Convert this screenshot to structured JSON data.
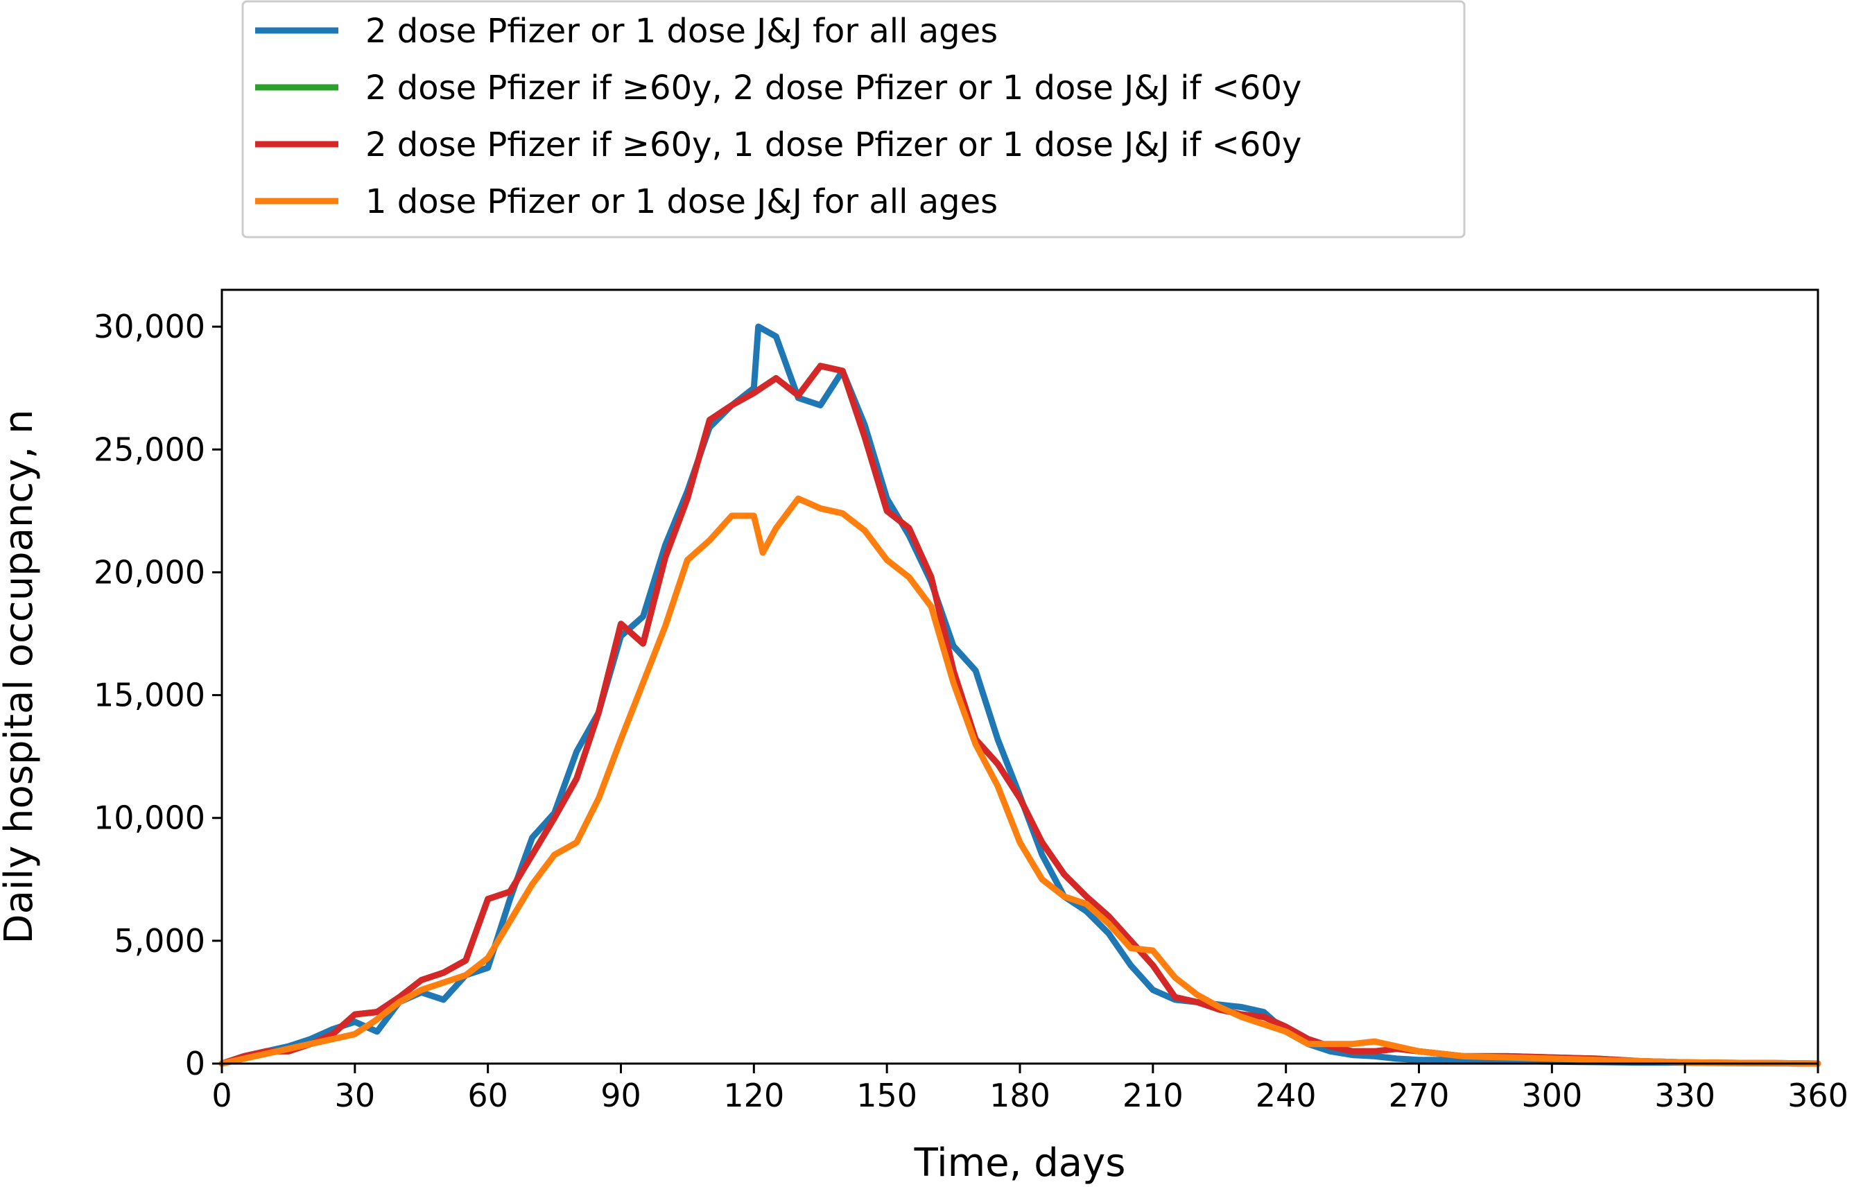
{
  "chart_data": {
    "type": "line",
    "xlabel": "Time, days",
    "ylabel": "Daily hospital occupancy, n",
    "xlim": [
      0,
      360
    ],
    "ylim": [
      0,
      31500
    ],
    "xticks": [
      "0",
      "30",
      "60",
      "90",
      "120",
      "150",
      "180",
      "210",
      "240",
      "270",
      "300",
      "330",
      "360"
    ],
    "yticks": [
      "0",
      "5,000",
      "10,000",
      "15,000",
      "20,000",
      "25,000",
      "30,000"
    ],
    "grid": false,
    "legend_position": "top-left, above plot",
    "series": [
      {
        "name": "2 dose Pfizer or 1 dose J&J for all ages",
        "color": "#1f77b4",
        "x": [
          0,
          5,
          10,
          15,
          20,
          25,
          30,
          35,
          40,
          45,
          50,
          55,
          60,
          65,
          70,
          75,
          80,
          85,
          90,
          95,
          100,
          105,
          110,
          115,
          120,
          121,
          125,
          130,
          135,
          140,
          145,
          150,
          155,
          160,
          165,
          170,
          175,
          180,
          185,
          190,
          195,
          200,
          205,
          210,
          215,
          220,
          225,
          230,
          235,
          240,
          245,
          250,
          255,
          260,
          265,
          270,
          280,
          290,
          300,
          310,
          320,
          330,
          340,
          350,
          360
        ],
        "y": [
          0,
          300,
          500,
          700,
          1000,
          1400,
          1700,
          1300,
          2500,
          2900,
          2600,
          3600,
          3900,
          6700,
          9200,
          10200,
          12700,
          14300,
          17400,
          18200,
          21100,
          23300,
          25900,
          26800,
          27500,
          30000,
          29600,
          27100,
          26800,
          28200,
          26000,
          23000,
          21500,
          19600,
          17000,
          16000,
          13200,
          10900,
          8500,
          6800,
          6200,
          5300,
          4000,
          3000,
          2600,
          2500,
          2400,
          2300,
          2100,
          1300,
          800,
          500,
          350,
          300,
          200,
          150,
          150,
          100,
          80,
          60,
          40,
          40,
          20,
          10,
          0
        ]
      },
      {
        "name": "2 dose Pfizer if ≥60y, 2 dose Pfizer or 1 dose J&J if <60y",
        "color": "#2ca02c",
        "x": [
          0,
          5,
          10,
          15,
          20,
          25,
          30,
          35,
          40,
          45,
          50,
          55,
          60,
          65,
          70,
          75,
          80,
          85,
          90,
          95,
          100,
          105,
          110,
          115,
          120,
          125,
          130,
          135,
          140,
          145,
          150,
          155,
          160,
          165,
          170,
          175,
          180,
          185,
          190,
          195,
          200,
          205,
          210,
          215,
          220,
          225,
          230,
          235,
          240,
          245,
          250,
          255,
          260,
          265,
          270,
          280,
          290,
          300,
          310,
          320,
          330,
          340,
          350,
          360
        ],
        "y": [
          0,
          300,
          500,
          500,
          800,
          1200,
          2000,
          2100,
          2700,
          3400,
          3700,
          4200,
          6700,
          7000,
          8500,
          10000,
          11600,
          14300,
          17900,
          17100,
          20600,
          23000,
          26200,
          26800,
          27300,
          27900,
          27200,
          28400,
          28200,
          25500,
          22500,
          21800,
          19800,
          16000,
          13200,
          12200,
          10800,
          9000,
          7700,
          6800,
          6000,
          5000,
          4000,
          2700,
          2500,
          2200,
          2000,
          1900,
          1500,
          1000,
          700,
          500,
          500,
          600,
          500,
          300,
          300,
          250,
          200,
          100,
          50,
          30,
          20,
          0
        ]
      },
      {
        "name": "2 dose Pfizer if ≥60y, 1 dose Pfizer or 1 dose J&J if <60y",
        "color": "#d62728",
        "x": [
          0,
          5,
          10,
          15,
          20,
          25,
          30,
          35,
          40,
          45,
          50,
          55,
          60,
          65,
          70,
          75,
          80,
          85,
          90,
          95,
          100,
          105,
          110,
          115,
          120,
          125,
          130,
          135,
          140,
          145,
          150,
          155,
          160,
          165,
          170,
          175,
          180,
          185,
          190,
          195,
          200,
          205,
          210,
          215,
          220,
          225,
          230,
          235,
          240,
          245,
          250,
          255,
          260,
          265,
          270,
          280,
          290,
          300,
          310,
          320,
          330,
          340,
          350,
          360
        ],
        "y": [
          0,
          300,
          500,
          500,
          800,
          1200,
          2000,
          2100,
          2700,
          3400,
          3700,
          4200,
          6700,
          7000,
          8500,
          10000,
          11600,
          14300,
          17900,
          17100,
          20600,
          23000,
          26200,
          26800,
          27300,
          27900,
          27200,
          28400,
          28200,
          25500,
          22500,
          21800,
          19800,
          16000,
          13200,
          12200,
          10800,
          9000,
          7700,
          6800,
          6000,
          5000,
          4000,
          2700,
          2500,
          2200,
          2000,
          1900,
          1500,
          1000,
          700,
          500,
          500,
          600,
          500,
          300,
          300,
          250,
          200,
          100,
          50,
          30,
          20,
          0
        ]
      },
      {
        "name": "1 dose Pfizer or 1 dose J&J for all ages",
        "color": "#ff7f0e",
        "x": [
          0,
          5,
          10,
          15,
          20,
          25,
          30,
          35,
          40,
          45,
          50,
          55,
          60,
          65,
          70,
          75,
          80,
          85,
          90,
          95,
          100,
          105,
          110,
          115,
          120,
          122,
          125,
          130,
          135,
          140,
          145,
          150,
          155,
          160,
          165,
          170,
          175,
          180,
          185,
          190,
          195,
          200,
          205,
          210,
          215,
          220,
          225,
          230,
          235,
          240,
          245,
          250,
          255,
          260,
          265,
          270,
          280,
          290,
          300,
          310,
          320,
          330,
          340,
          350,
          360
        ],
        "y": [
          0,
          200,
          400,
          600,
          800,
          1000,
          1200,
          1800,
          2500,
          3000,
          3300,
          3600,
          4300,
          5800,
          7300,
          8500,
          9000,
          10800,
          13200,
          15500,
          17800,
          20500,
          21300,
          22300,
          22300,
          20800,
          21800,
          23000,
          22600,
          22400,
          21700,
          20500,
          19800,
          18600,
          15500,
          13000,
          11300,
          9000,
          7500,
          6800,
          6500,
          5700,
          4700,
          4600,
          3500,
          2800,
          2300,
          1900,
          1600,
          1300,
          800,
          800,
          800,
          900,
          700,
          500,
          300,
          250,
          200,
          150,
          100,
          50,
          30,
          20,
          0
        ]
      }
    ]
  }
}
